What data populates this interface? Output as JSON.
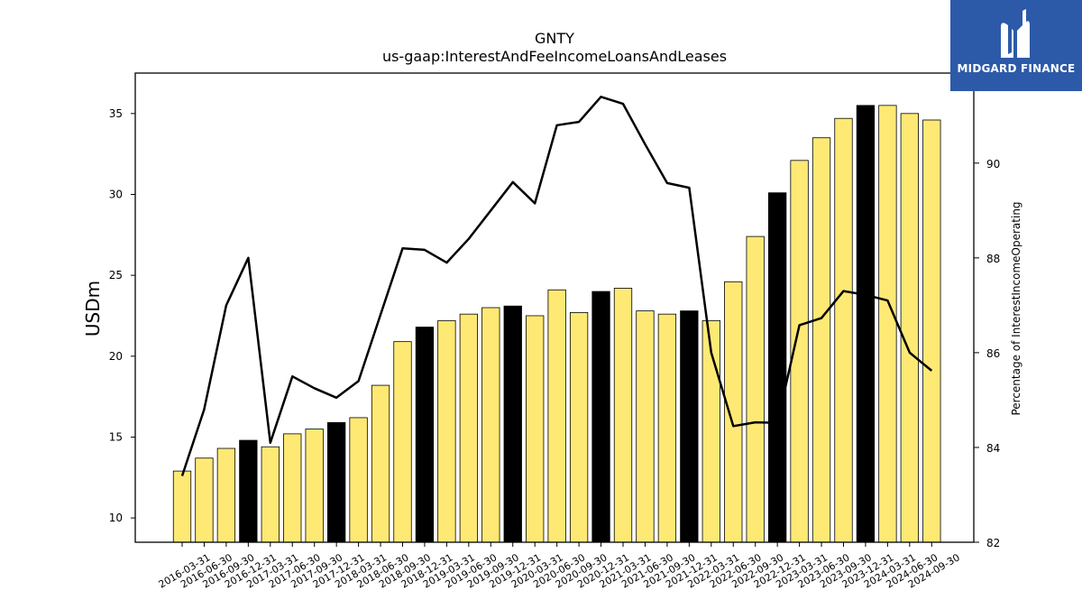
{
  "chart_data": {
    "type": "bar",
    "title": "GNTY",
    "subtitle": "us-gaap:InterestAndFeeIncomeLoansAndLeases",
    "ylabel": "USDm",
    "y2label": "Percentage of InterestIncomeOperating",
    "ylim": [
      8.5,
      37.5
    ],
    "y2lim": [
      82,
      91.9
    ],
    "yticks": [
      10,
      15,
      20,
      25,
      30,
      35
    ],
    "y2ticks": [
      82,
      84,
      86,
      88,
      90
    ],
    "categories": [
      "2016-03-31",
      "2016-06-30",
      "2016-09-30",
      "2016-12-31",
      "2017-03-31",
      "2017-06-30",
      "2017-09-30",
      "2017-12-31",
      "2018-03-31",
      "2018-06-30",
      "2018-09-30",
      "2018-12-31",
      "2019-03-31",
      "2019-06-30",
      "2019-09-30",
      "2019-12-31",
      "2020-03-31",
      "2020-06-30",
      "2020-09-30",
      "2020-12-31",
      "2021-03-31",
      "2021-06-30",
      "2021-09-30",
      "2021-12-31",
      "2022-03-31",
      "2022-06-30",
      "2022-09-30",
      "2022-12-31",
      "2023-03-31",
      "2023-06-30",
      "2023-09-30",
      "2023-12-31",
      "2024-03-31",
      "2024-06-30",
      "2024-09-30"
    ],
    "series": [
      {
        "axis": "left",
        "type": "bar",
        "values": [
          12.9,
          13.7,
          14.3,
          14.8,
          14.4,
          15.2,
          15.5,
          15.9,
          16.2,
          18.2,
          20.9,
          21.8,
          22.2,
          22.6,
          23.0,
          23.1,
          22.5,
          24.1,
          22.7,
          24.0,
          24.2,
          22.8,
          22.6,
          22.8,
          22.2,
          24.6,
          27.4,
          30.1,
          32.1,
          33.5,
          34.7,
          35.5,
          35.5,
          35.0,
          34.6
        ],
        "highlight": [
          false,
          false,
          false,
          true,
          false,
          false,
          false,
          true,
          false,
          false,
          false,
          true,
          false,
          false,
          false,
          true,
          false,
          false,
          false,
          true,
          false,
          false,
          false,
          true,
          false,
          false,
          false,
          true,
          false,
          false,
          false,
          true,
          false,
          false,
          false
        ]
      },
      {
        "axis": "right",
        "type": "line",
        "values": [
          83.4,
          84.8,
          87.0,
          88.0,
          84.1,
          85.5,
          85.25,
          85.05,
          85.4,
          86.8,
          88.2,
          88.17,
          87.9,
          88.4,
          89.0,
          89.6,
          89.15,
          90.8,
          90.87,
          91.4,
          91.25,
          90.4,
          89.58,
          89.48,
          86.0,
          84.45,
          84.53,
          84.52,
          86.58,
          86.73,
          87.3,
          87.22,
          87.1,
          86.0,
          85.62
        ]
      }
    ],
    "colors": {
      "bar": "#ffe975",
      "bar_highlight": "#000000",
      "line": "#000000"
    },
    "grid": false,
    "legend": "none"
  },
  "logo": {
    "text": "MIDGARD FINANCE",
    "icon": "midgard-logo-icon",
    "background": "#2c5aa8"
  }
}
